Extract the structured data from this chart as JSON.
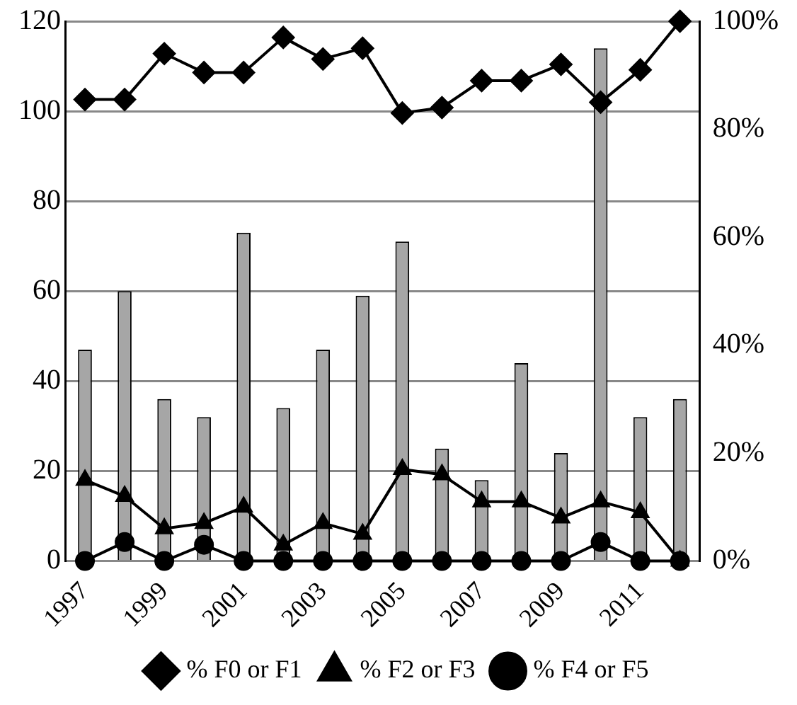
{
  "chart_data": {
    "type": "bar",
    "categories": [
      "1997",
      null,
      "1999",
      null,
      "2001",
      null,
      "2003",
      null,
      "2005",
      null,
      "2007",
      null,
      "2009",
      null,
      "2011",
      null
    ],
    "ylim": [
      0,
      120
    ],
    "yticks": [
      0,
      20,
      40,
      60,
      80,
      100,
      120
    ],
    "y2lim": [
      0,
      100
    ],
    "y2ticks": [
      {
        "value": 0,
        "label": "0%"
      },
      {
        "value": 20,
        "label": "20%"
      },
      {
        "value": 40,
        "label": "40%"
      },
      {
        "value": 60,
        "label": "60%"
      },
      {
        "value": 80,
        "label": "80%"
      },
      {
        "value": 100,
        "label": "100%"
      }
    ],
    "grid": "y",
    "legend": "bottom",
    "series": [
      {
        "type": "line",
        "name": "% F0 or F1",
        "color": "#000000",
        "marker": "diamond",
        "axis": "y2",
        "values": [
          85.5,
          85.5,
          94,
          90.5,
          90.5,
          97,
          93,
          95,
          83,
          84,
          89,
          89,
          92,
          85,
          91,
          100
        ]
      },
      {
        "type": "line",
        "name": "% F2 or F3",
        "color": "#000000",
        "marker": "triangle",
        "axis": "y2",
        "values": [
          15,
          12,
          6,
          7,
          10,
          3,
          7,
          5,
          17,
          16,
          11,
          11,
          8,
          11,
          9,
          0
        ]
      },
      {
        "type": "line",
        "name": "% F4 or F5",
        "color": "#000000",
        "marker": "circle",
        "axis": "y2",
        "values": [
          0,
          3.5,
          0,
          3,
          0,
          0,
          0,
          0,
          0,
          0,
          0,
          0,
          0,
          3.5,
          0,
          0
        ]
      },
      {
        "color": "#a6a6a6",
        "values": [
          47,
          60,
          36,
          32,
          73,
          34,
          47,
          59,
          71,
          25,
          18,
          44,
          24,
          114,
          32,
          36
        ]
      }
    ]
  }
}
